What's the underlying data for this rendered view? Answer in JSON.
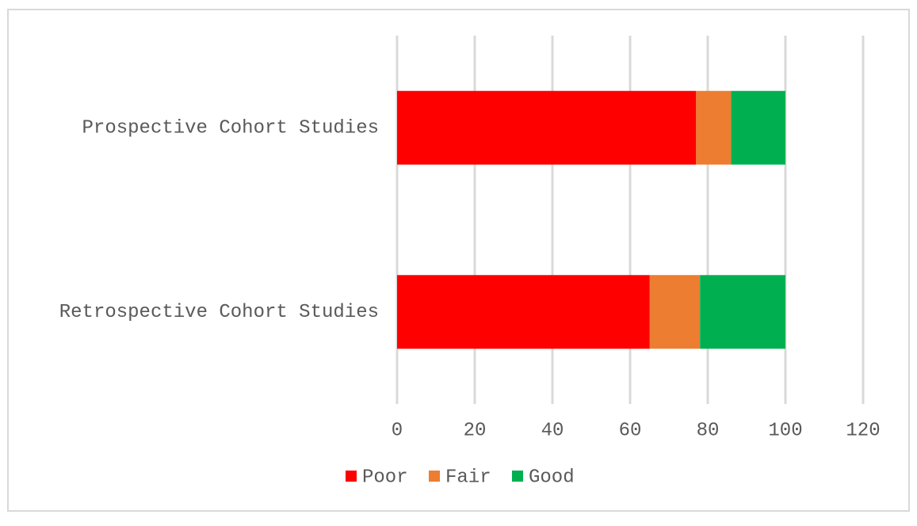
{
  "chart_data": {
    "type": "stacked-bar-horizontal",
    "categories": [
      "Prospective Cohort Studies",
      "Retrospective Cohort Studies"
    ],
    "series": [
      {
        "name": "Poor",
        "color": "#ff0000",
        "values": [
          77,
          65
        ]
      },
      {
        "name": "Fair",
        "color": "#ed7d31",
        "values": [
          9,
          13
        ]
      },
      {
        "name": "Good",
        "color": "#00b050",
        "values": [
          14,
          22
        ]
      }
    ],
    "xlim": [
      0,
      120
    ],
    "xticks": [
      0,
      20,
      40,
      60,
      80,
      100,
      120
    ],
    "grid": true,
    "legend": "bottom"
  }
}
